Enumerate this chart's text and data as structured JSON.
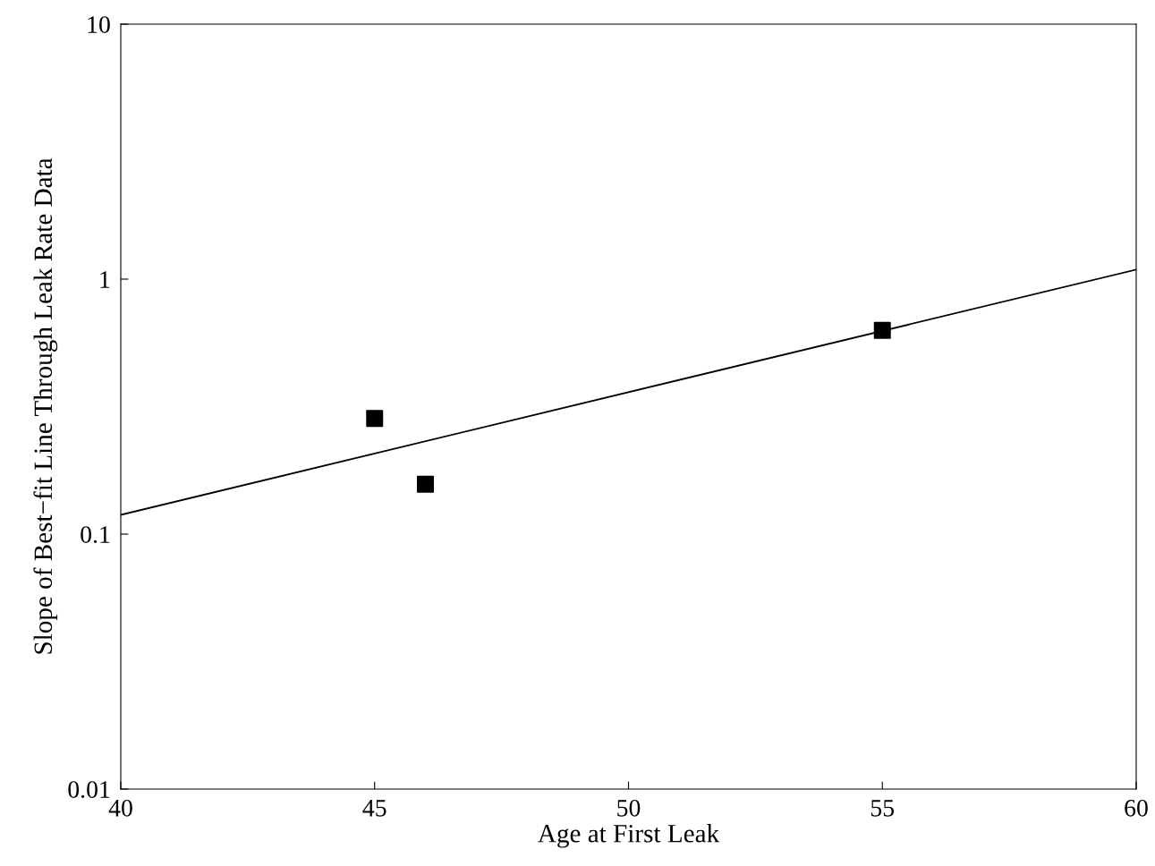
{
  "chart_data": {
    "type": "scatter",
    "xlabel": "Age at First Leak",
    "ylabel": "Slope of Best−fit Line Through Leak Rate Data",
    "log": "y",
    "xlim": [
      40,
      60
    ],
    "xticks": [
      40,
      45,
      50,
      55,
      60
    ],
    "ylim": [
      0.01,
      10
    ],
    "yticks": [
      0.01,
      0.1,
      1,
      10
    ],
    "grid": false,
    "legend": false,
    "series": [
      {
        "color": "#000000",
        "marker": "square",
        "x": [
          45,
          46,
          55
        ],
        "values": [
          0.284,
          0.157,
          0.63
        ]
      },
      {
        "type": "line",
        "color": "#000000",
        "marker": "none",
        "line_style": "solid",
        "x": [
          40,
          60
        ],
        "values": [
          0.119,
          1.09
        ]
      }
    ]
  }
}
